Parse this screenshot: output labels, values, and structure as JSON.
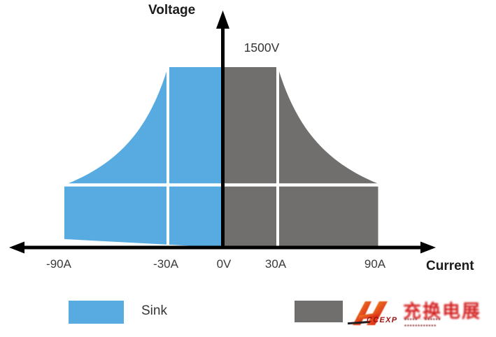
{
  "page": {
    "background": "#ffffff"
  },
  "chart_data": {
    "type": "area",
    "title": "",
    "xlabel": "Current",
    "ylabel": "Voltage",
    "x_tick_labels": [
      "-90A",
      "-30A",
      "0V",
      "30A",
      "90A"
    ],
    "x_tick_values_amps": [
      -90,
      -30,
      0,
      30,
      90
    ],
    "peak_voltage_annotation": "1500V",
    "voltage_range": [
      0,
      1500
    ],
    "current_range_amps": [
      -90,
      90
    ],
    "voltage_at_max_current": 500,
    "grid": {
      "vertical_divider_amps": [
        -30,
        30
      ],
      "horizontal_divider_volts": 500,
      "line_color": "#ffffff"
    },
    "axis_color": "#000000",
    "legend_position": "bottom",
    "series": [
      {
        "name": "sink-region",
        "legend_label": "Sink",
        "color": "#57ABE0",
        "current_range_amps": [
          -90,
          0
        ],
        "upper_boundary_points": [
          {
            "current": 0,
            "voltage": 1500
          },
          {
            "current": -30,
            "voltage": 1500
          },
          {
            "current": -90,
            "voltage": 500
          }
        ],
        "upper_boundary_shape": "constant-power hyperbola between -30A and -90A",
        "lower_boundary_points": [
          {
            "current": 0,
            "voltage": 0
          },
          {
            "current": -90,
            "voltage": 70
          }
        ]
      },
      {
        "name": "source-region",
        "legend_label": "",
        "color": "#716E6E",
        "current_range_amps": [
          0,
          90
        ],
        "upper_boundary_points": [
          {
            "current": 0,
            "voltage": 1500
          },
          {
            "current": 30,
            "voltage": 1500
          },
          {
            "current": 90,
            "voltage": 500
          }
        ],
        "upper_boundary_shape": "constant-power hyperbola between 30A and 90A",
        "lower_boundary_points": [
          {
            "current": 0,
            "voltage": 0
          },
          {
            "current": 90,
            "voltage": 0
          }
        ]
      }
    ]
  },
  "labels": {
    "voltage_axis": "Voltage",
    "current_axis": "Current",
    "peak_voltage": "1500V"
  },
  "legend": {
    "sink_label": "Sink",
    "sink_color": "#57ABE0",
    "source_color": "#716E6E"
  },
  "watermark_logo": {
    "brand_text": "CCEXP",
    "large_text_blurred": "充换电展",
    "small_text_row1_blurred": "▪▪▪▪▪ · ▪▪▪▪▪▪",
    "small_text_row2_blurred": "▪▪▪▪▪▪▪▪▪▪▪▪",
    "orange": "#F5A21B",
    "mid_red": "#E2451D",
    "red": "#D31F1F",
    "dark_red": "#7E1414"
  }
}
